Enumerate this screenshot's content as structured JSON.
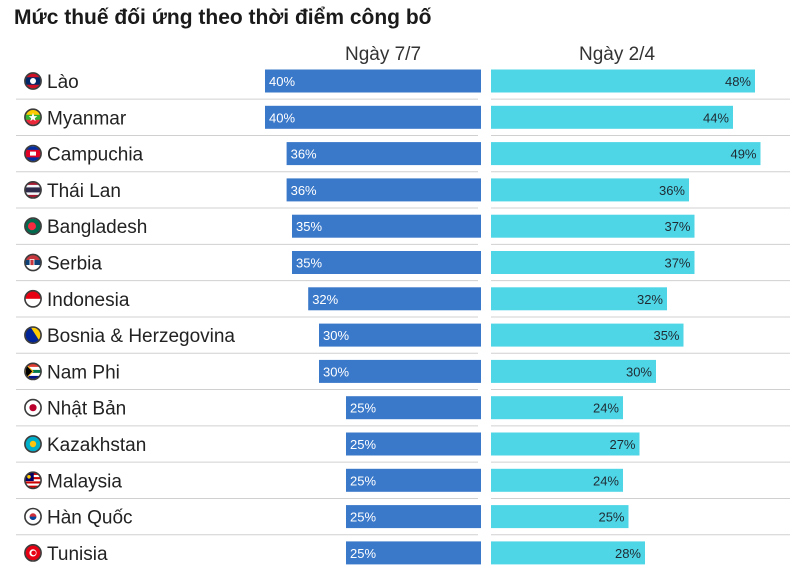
{
  "chart_data": {
    "type": "bar",
    "title": "Mức thuế đối ứng theo thời điểm công bố",
    "categories": [
      "Lào",
      "Myanmar",
      "Campuchia",
      "Thái Lan",
      "Bangladesh",
      "Serbia",
      "Indonesia",
      "Bosnia & Herzegovina",
      "Nam Phi",
      "Nhật Bản",
      "Kazakhstan",
      "Malaysia",
      "Hàn Quốc",
      "Tunisia"
    ],
    "series": [
      {
        "name": "Ngày 7/7",
        "values": [
          40,
          40,
          36,
          36,
          35,
          35,
          32,
          30,
          30,
          25,
          25,
          25,
          25,
          25
        ],
        "labels": [
          "40%",
          "40%",
          "36%",
          "36%",
          "35%",
          "35%",
          "32%",
          "30%",
          "30%",
          "25%",
          "25%",
          "25%",
          "25%",
          "25%"
        ],
        "color": "#3a78c9"
      },
      {
        "name": "Ngày 2/4",
        "values": [
          48,
          44,
          49,
          36,
          37,
          37,
          32,
          35,
          30,
          24,
          27,
          24,
          25,
          28
        ],
        "labels": [
          "48%",
          "44%",
          "49%",
          "36%",
          "37%",
          "37%",
          "32%",
          "35%",
          "30%",
          "24%",
          "27%",
          "24%",
          "25%",
          "28%"
        ],
        "color": "#4fd6e6"
      }
    ],
    "flag_icons": [
      "laos-flag-icon",
      "myanmar-flag-icon",
      "cambodia-flag-icon",
      "thailand-flag-icon",
      "bangladesh-flag-icon",
      "serbia-flag-icon",
      "indonesia-flag-icon",
      "bosnia-flag-icon",
      "south-africa-flag-icon",
      "japan-flag-icon",
      "kazakhstan-flag-icon",
      "malaysia-flag-icon",
      "south-korea-flag-icon",
      "tunisia-flag-icon"
    ],
    "grid": false,
    "divider_color": "#d0d0d0"
  }
}
